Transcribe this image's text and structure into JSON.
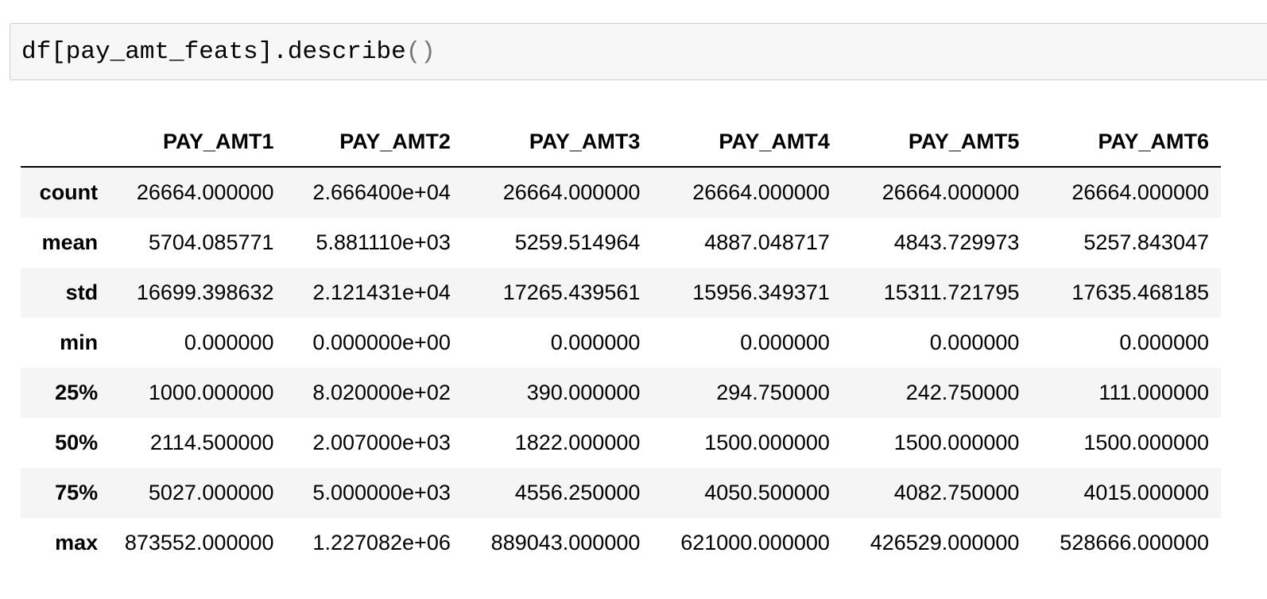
{
  "cell": {
    "code_prefix": "df[pay_amt_feats].describe",
    "code_open": "(",
    "code_close": ")"
  },
  "table": {
    "index_header": "",
    "columns": [
      "PAY_AMT1",
      "PAY_AMT2",
      "PAY_AMT3",
      "PAY_AMT4",
      "PAY_AMT5",
      "PAY_AMT6"
    ],
    "rows": [
      {
        "label": "count",
        "values": [
          "26664.000000",
          "2.666400e+04",
          "26664.000000",
          "26664.000000",
          "26664.000000",
          "26664.000000"
        ]
      },
      {
        "label": "mean",
        "values": [
          "5704.085771",
          "5.881110e+03",
          "5259.514964",
          "4887.048717",
          "4843.729973",
          "5257.843047"
        ]
      },
      {
        "label": "std",
        "values": [
          "16699.398632",
          "2.121431e+04",
          "17265.439561",
          "15956.349371",
          "15311.721795",
          "17635.468185"
        ]
      },
      {
        "label": "min",
        "values": [
          "0.000000",
          "0.000000e+00",
          "0.000000",
          "0.000000",
          "0.000000",
          "0.000000"
        ]
      },
      {
        "label": "25%",
        "values": [
          "1000.000000",
          "8.020000e+02",
          "390.000000",
          "294.750000",
          "242.750000",
          "111.000000"
        ]
      },
      {
        "label": "50%",
        "values": [
          "2114.500000",
          "2.007000e+03",
          "1822.000000",
          "1500.000000",
          "1500.000000",
          "1500.000000"
        ]
      },
      {
        "label": "75%",
        "values": [
          "5027.000000",
          "5.000000e+03",
          "4556.250000",
          "4050.500000",
          "4082.750000",
          "4015.000000"
        ]
      },
      {
        "label": "max",
        "values": [
          "873552.000000",
          "1.227082e+06",
          "889043.000000",
          "621000.000000",
          "426529.000000",
          "528666.000000"
        ]
      }
    ]
  }
}
